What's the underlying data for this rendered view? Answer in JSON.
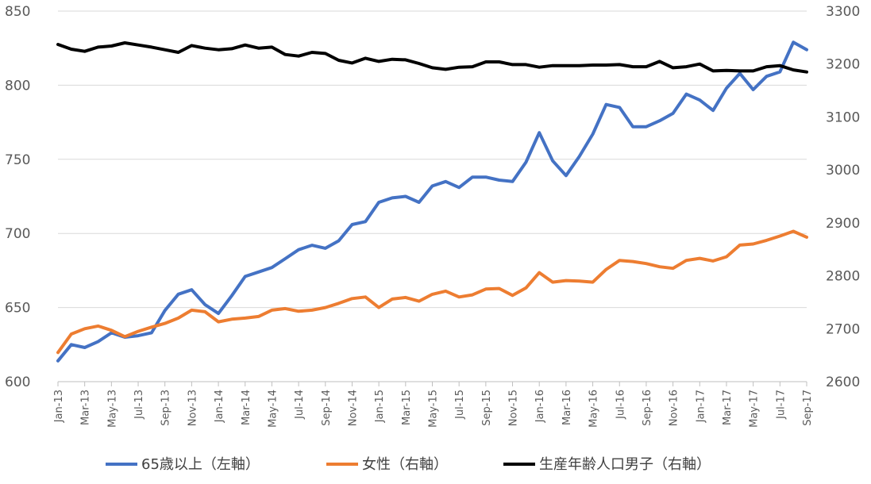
{
  "chart_data": {
    "type": "line",
    "title": "",
    "xlabel": "",
    "ylabel": "",
    "y2label": "",
    "ylim": [
      600,
      850
    ],
    "y2lim": [
      2600,
      3300
    ],
    "yticks": [
      600,
      650,
      700,
      750,
      800,
      850
    ],
    "y2ticks": [
      2600,
      2700,
      2800,
      2900,
      3000,
      3100,
      3200,
      3300
    ],
    "grid": "horizontal",
    "legend_position": "bottom",
    "x": [
      "Jan-13",
      "Feb-13",
      "Mar-13",
      "Apr-13",
      "May-13",
      "Jun-13",
      "Jul-13",
      "Aug-13",
      "Sep-13",
      "Oct-13",
      "Nov-13",
      "Dec-13",
      "Jan-14",
      "Feb-14",
      "Mar-14",
      "Apr-14",
      "May-14",
      "Jun-14",
      "Jul-14",
      "Aug-14",
      "Sep-14",
      "Oct-14",
      "Nov-14",
      "Dec-14",
      "Jan-15",
      "Feb-15",
      "Mar-15",
      "Apr-15",
      "May-15",
      "Jun-15",
      "Jul-15",
      "Aug-15",
      "Sep-15",
      "Oct-15",
      "Nov-15",
      "Dec-15",
      "Jan-16",
      "Feb-16",
      "Mar-16",
      "Apr-16",
      "May-16",
      "Jun-16",
      "Jul-16",
      "Aug-16",
      "Sep-16",
      "Oct-16",
      "Nov-16",
      "Dec-16",
      "Jan-17",
      "Feb-17",
      "Mar-17",
      "Apr-17",
      "May-17",
      "Jun-17",
      "Jul-17",
      "Aug-17",
      "Sep-17"
    ],
    "xticklabels": [
      "Jan-13",
      "Mar-13",
      "May-13",
      "Jul-13",
      "Sep-13",
      "Nov-13",
      "Jan-14",
      "Mar-14",
      "May-14",
      "Jul-14",
      "Sep-14",
      "Nov-14",
      "Jan-15",
      "Mar-15",
      "May-15",
      "Jul-15",
      "Sep-15",
      "Nov-15",
      "Jan-16",
      "Mar-16",
      "May-16",
      "Jul-16",
      "Sep-16",
      "Nov-16",
      "Jan-17",
      "Mar-17",
      "May-17",
      "Jul-17",
      "Sep-17"
    ],
    "series": [
      {
        "name": "65歳以上（左軸）",
        "axis": "left",
        "color": "#4472C4",
        "values": [
          614,
          625,
          623,
          627,
          633,
          630,
          631,
          633,
          648,
          659,
          662,
          652,
          646,
          658,
          671,
          674,
          677,
          683,
          689,
          692,
          690,
          695,
          706,
          708,
          721,
          724,
          725,
          721,
          732,
          735,
          731,
          738,
          738,
          736,
          735,
          748,
          768,
          749,
          739,
          752,
          767,
          787,
          785,
          772,
          772,
          776,
          781,
          794,
          790,
          783,
          798,
          808,
          797,
          806,
          809,
          829,
          824
        ]
      },
      {
        "name": "女性（右軸）",
        "axis": "right",
        "color": "#ED7D31",
        "values": [
          2655,
          2690,
          2700,
          2705,
          2697,
          2685,
          2695,
          2703,
          2710,
          2720,
          2735,
          2732,
          2713,
          2718,
          2720,
          2723,
          2735,
          2738,
          2733,
          2735,
          2740,
          2748,
          2757,
          2760,
          2740,
          2756,
          2759,
          2752,
          2765,
          2771,
          2760,
          2764,
          2775,
          2776,
          2763,
          2777,
          2806,
          2788,
          2791,
          2790,
          2788,
          2812,
          2829,
          2827,
          2823,
          2817,
          2814,
          2829,
          2833,
          2828,
          2836,
          2858,
          2860,
          2867,
          2875,
          2884,
          2873
        ]
      },
      {
        "name": "生産年齢人口男子（右軸）",
        "axis": "right",
        "color": "#000000",
        "values": [
          3237,
          3228,
          3224,
          3232,
          3234,
          3240,
          3236,
          3232,
          3227,
          3222,
          3235,
          3230,
          3227,
          3229,
          3236,
          3230,
          3232,
          3218,
          3215,
          3222,
          3220,
          3207,
          3202,
          3211,
          3205,
          3209,
          3208,
          3201,
          3193,
          3190,
          3194,
          3195,
          3204,
          3204,
          3199,
          3199,
          3194,
          3197,
          3197,
          3197,
          3198,
          3198,
          3199,
          3195,
          3195,
          3205,
          3193,
          3195,
          3200,
          3187,
          3188,
          3187,
          3187,
          3195,
          3197,
          3189,
          3185
        ]
      }
    ]
  }
}
